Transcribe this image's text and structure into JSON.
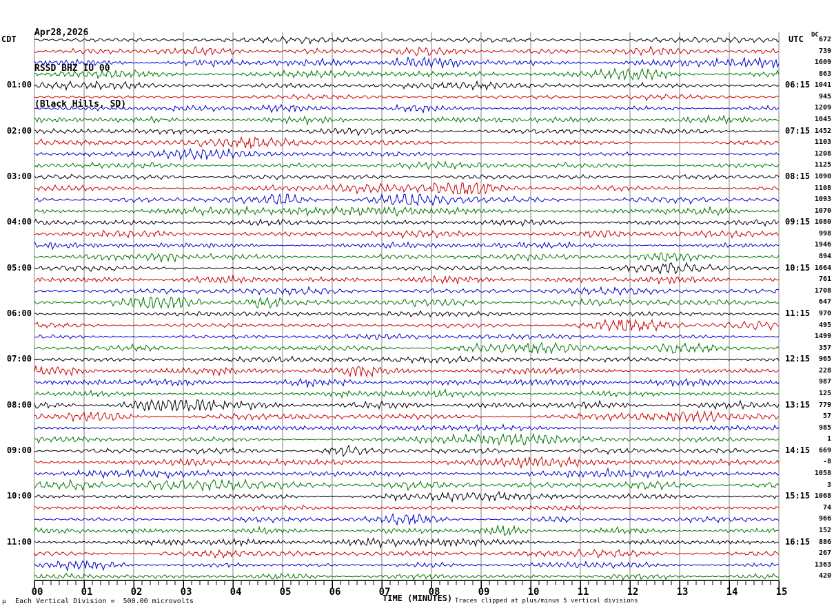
{
  "header": {
    "date": "Apr28,2026",
    "station": "RSSD BHZ IU 00",
    "location": "(Black Hills, SD)"
  },
  "axis": {
    "left_header": "CDT",
    "right_header": "UTC",
    "dc_header": "DC",
    "x_title": "TIME (MINUTES)",
    "x_tick_labels": [
      "00",
      "01",
      "02",
      "03",
      "04",
      "05",
      "06",
      "07",
      "08",
      "09",
      "10",
      "11",
      "12",
      "13",
      "14",
      "15"
    ]
  },
  "footer": {
    "corner_glyph": "µ",
    "scale_note": "Each Vertical Division =  500.00 microvolts",
    "clip_note": "Traces clipped at plus/minus 5 vertical divisions"
  },
  "chart_data": {
    "type": "line",
    "subtype": "helicorder-seismogram",
    "title": "RSSD BHZ IU 00 (Black Hills, SD) Apr28,2026",
    "x_label": "TIME (MINUTES)",
    "x_range_minutes": [
      0,
      15
    ],
    "minor_ticks_per_minute": 6,
    "row_count": 48,
    "rows_per_hour": 4,
    "minutes_per_row": 15,
    "local_timezone": "CDT",
    "utc_timezone": "UTC",
    "color_cycle": [
      "#000000",
      "#cc0000",
      "#0000cc",
      "#007700"
    ],
    "grid_color": "#808080",
    "left_hour_labels": [
      "01:00",
      "02:00",
      "03:00",
      "04:00",
      "05:00",
      "06:00",
      "07:00",
      "08:00",
      "09:00",
      "10:00",
      "11:00"
    ],
    "right_utc_labels": [
      "06:15",
      "07:15",
      "08:15",
      "09:15",
      "10:15",
      "11:15",
      "12:15",
      "13:15",
      "14:15",
      "15:15",
      "16:15"
    ],
    "labeled_row_start": 4,
    "labeled_row_step": 4,
    "dc_values": [
      672,
      739,
      1609,
      863,
      1041,
      945,
      1209,
      1045,
      1452,
      1103,
      1208,
      1125,
      1090,
      1108,
      1093,
      1070,
      1080,
      998,
      1946,
      894,
      1664,
      761,
      1708,
      647,
      970,
      495,
      1499,
      357,
      965,
      228,
      987,
      125,
      779,
      57,
      985,
      1,
      669,
      -8,
      1058,
      3,
      1068,
      74,
      966,
      152,
      886,
      267,
      1363,
      420
    ],
    "scale_note": "Each Vertical Division =  500.00 microvolts",
    "clip_note": "Traces clipped at plus/minus 5 vertical divisions"
  }
}
